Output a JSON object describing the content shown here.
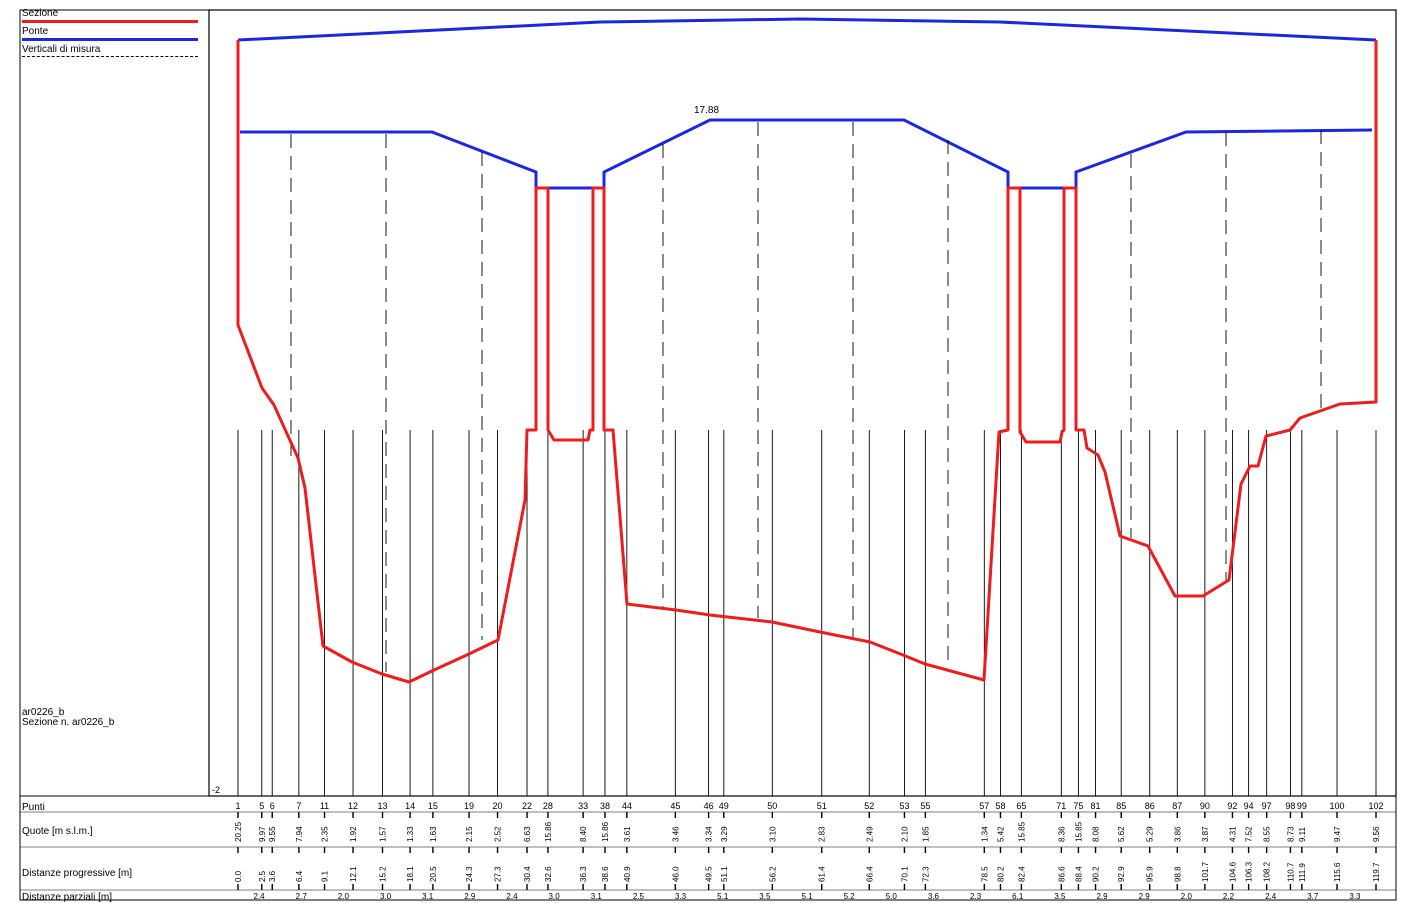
{
  "legend": {
    "items": [
      {
        "label": "Sezione",
        "color": "#ee1c1c",
        "style": "solid"
      },
      {
        "label": "Ponte",
        "color": "#1c28e0",
        "style": "solid"
      },
      {
        "label": "Verticali di misura",
        "color": "#000000",
        "style": "dashed"
      }
    ]
  },
  "identification": {
    "code": "ar0226_b",
    "section": "Sezione n. ar0226_b"
  },
  "plot": {
    "ymin_label": "-2",
    "deck_peak_label": "17.88"
  },
  "table": {
    "rows": {
      "punti": "Punti",
      "quote": "Quote [m s.l.m.]",
      "progressive": "Distanze progressive [m]",
      "parziali": "Distanze parziali [m]"
    },
    "points": [
      {
        "n": "1",
        "q": "20.25",
        "d": "0.0"
      },
      {
        "n": "5",
        "q": "9.97",
        "d": "2.5"
      },
      {
        "n": "6",
        "q": "9.55",
        "d": "3.6"
      },
      {
        "n": "7",
        "q": "7.94",
        "d": "6.4"
      },
      {
        "n": "11",
        "q": "2.35",
        "d": "9.1"
      },
      {
        "n": "12",
        "q": "1.92",
        "d": "12.1"
      },
      {
        "n": "13",
        "q": "1.57",
        "d": "15.2"
      },
      {
        "n": "14",
        "q": "1.33",
        "d": "18.1"
      },
      {
        "n": "15",
        "q": "1.63",
        "d": "20.5"
      },
      {
        "n": "19",
        "q": "2.15",
        "d": "24.3"
      },
      {
        "n": "20",
        "q": "2.52",
        "d": "27.3"
      },
      {
        "n": "22",
        "q": "6.63",
        "d": "30.4"
      },
      {
        "n": "28",
        "q": "15.86",
        "d": "32.6"
      },
      {
        "n": "33",
        "q": "8.40",
        "d": "36.3"
      },
      {
        "n": "38",
        "q": "15.86",
        "d": "38.6"
      },
      {
        "n": "44",
        "q": "3.61",
        "d": "40.9"
      },
      {
        "n": "45",
        "q": "3.46",
        "d": "46.0"
      },
      {
        "n": "46",
        "q": "3.34",
        "d": "49.5"
      },
      {
        "n": "49",
        "q": "3.29",
        "d": "51.1"
      },
      {
        "n": "50",
        "q": "3.10",
        "d": "56.2"
      },
      {
        "n": "51",
        "q": "2.83",
        "d": "61.4"
      },
      {
        "n": "52",
        "q": "2.49",
        "d": "66.4"
      },
      {
        "n": "53",
        "q": "2.10",
        "d": "70.1"
      },
      {
        "n": "55",
        "q": "1.85",
        "d": "72.3"
      },
      {
        "n": "57",
        "q": "1.34",
        "d": "78.5"
      },
      {
        "n": "58",
        "q": "5.42",
        "d": "80.2"
      },
      {
        "n": "65",
        "q": "15.85",
        "d": "82.4"
      },
      {
        "n": "71",
        "q": "8.36",
        "d": "86.6"
      },
      {
        "n": "75",
        "q": "15.85",
        "d": "88.4"
      },
      {
        "n": "81",
        "q": "8.08",
        "d": "90.2"
      },
      {
        "n": "85",
        "q": "5.62",
        "d": "92.9"
      },
      {
        "n": "86",
        "q": "5.29",
        "d": "95.9"
      },
      {
        "n": "87",
        "q": "3.86",
        "d": "98.8"
      },
      {
        "n": "90",
        "q": "3.87",
        "d": "101.7"
      },
      {
        "n": "92",
        "q": "4.31",
        "d": "104.6"
      },
      {
        "n": "94",
        "q": "7.52",
        "d": "106.3"
      },
      {
        "n": "97",
        "q": "8.55",
        "d": "108.2"
      },
      {
        "n": "98",
        "q": "8.73",
        "d": "110.7"
      },
      {
        "n": "99",
        "q": "9.11",
        "d": "111.9"
      },
      {
        "n": "100",
        "q": "9.47",
        "d": "115.6"
      },
      {
        "n": "102",
        "q": "9.56",
        "d": "119.7"
      }
    ],
    "partials": [
      "2.4",
      "2.7",
      "2.0",
      "3.0",
      "3.1",
      "2.9",
      "2.4",
      "3.0",
      "3.1",
      "2.5",
      "3.3",
      "5.1",
      "3.5",
      "5.1",
      "5.2",
      "5.0",
      "3.6",
      "2.3",
      "6.1",
      "3.5",
      "2.9",
      "2.9",
      "2.0",
      "2.2",
      "2.4",
      "3.7",
      "3.3"
    ]
  },
  "colors": {
    "section": "#ee1c1c",
    "bridge": "#1c28e0",
    "verticals": "#000000"
  }
}
